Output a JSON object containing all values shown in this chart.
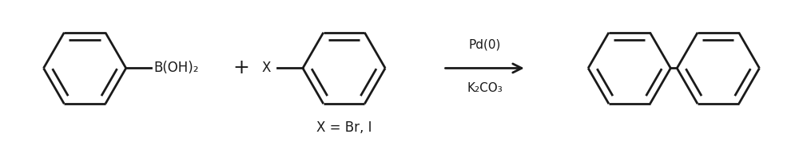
{
  "bg_color": "#ffffff",
  "line_color": "#1a1a1a",
  "line_width": 2.0,
  "fig_width": 10.0,
  "fig_height": 1.78,
  "dpi": 100,
  "arrow_text_top": "Pd(0)",
  "arrow_text_bottom": "K₂CO₃",
  "plus_sign": "+",
  "x_label": "X",
  "b_label": "B(OH)₂",
  "x_eq_label": "X = Br, I",
  "font_size_reaction": 11,
  "font_size_label": 12,
  "font_size_x_eq": 12,
  "font_size_plus": 18
}
